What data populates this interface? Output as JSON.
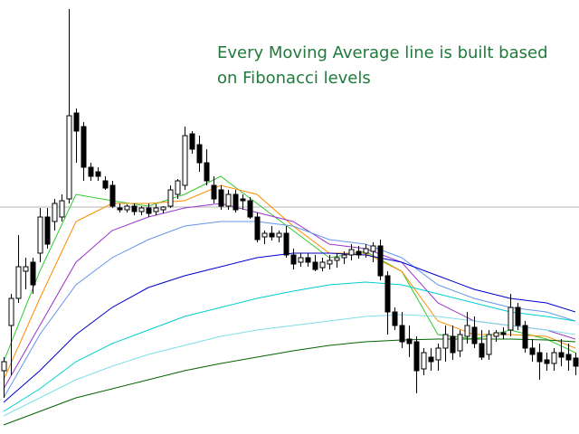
{
  "chart_data": {
    "type": "candlestick",
    "annotation": [
      "Every Moving Average line is built based",
      "on Fibonacci levels"
    ],
    "xlim": [
      0,
      79
    ],
    "ylim": [
      0,
      480
    ],
    "price_line": 251,
    "candles": {
      "open": [
        70,
        120,
        150,
        180,
        190,
        200,
        240,
        235,
        240,
        260,
        355,
        340,
        295,
        290,
        280,
        275,
        250,
        248,
        252,
        246,
        250,
        246,
        248,
        252,
        265,
        275,
        332,
        320,
        300,
        275,
        270,
        252,
        265,
        260,
        258,
        240,
        218,
        222,
        218,
        222,
        198,
        190,
        195,
        190,
        184,
        188,
        192,
        195,
        198,
        202,
        200,
        202,
        208,
        175,
        135,
        120,
        105,
        102,
        72,
        85,
        82,
        95,
        108,
        92,
        108,
        118,
        100,
        88,
        108,
        112,
        115,
        140,
        120,
        95,
        90,
        82,
        78,
        90,
        88,
        84
      ],
      "high": [
        85,
        155,
        220,
        195,
        195,
        250,
        250,
        260,
        265,
        470,
        360,
        345,
        300,
        295,
        285,
        280,
        255,
        254,
        255,
        252,
        255,
        254,
        252,
        275,
        282,
        340,
        335,
        330,
        315,
        285,
        275,
        270,
        270,
        265,
        262,
        245,
        225,
        230,
        225,
        230,
        205,
        200,
        200,
        198,
        195,
        198,
        200,
        202,
        210,
        208,
        210,
        212,
        215,
        180,
        140,
        135,
        120,
        108,
        95,
        95,
        100,
        120,
        120,
        115,
        135,
        130,
        115,
        115,
        115,
        118,
        155,
        145,
        125,
        105,
        100,
        90,
        95,
        105,
        100,
        90
      ],
      "low": [
        40,
        65,
        145,
        160,
        155,
        190,
        205,
        225,
        235,
        255,
        300,
        280,
        280,
        280,
        270,
        250,
        245,
        245,
        242,
        242,
        240,
        242,
        244,
        250,
        260,
        270,
        310,
        290,
        275,
        255,
        248,
        248,
        245,
        248,
        238,
        212,
        210,
        214,
        212,
        195,
        182,
        185,
        185,
        180,
        180,
        182,
        184,
        188,
        192,
        194,
        195,
        190,
        170,
        110,
        115,
        95,
        85,
        45,
        65,
        70,
        70,
        80,
        82,
        85,
        100,
        95,
        82,
        82,
        102,
        105,
        108,
        115,
        90,
        80,
        60,
        70,
        70,
        75,
        70,
        65
      ],
      "close": [
        80,
        150,
        185,
        185,
        165,
        240,
        210,
        255,
        258,
        352,
        335,
        295,
        285,
        285,
        272,
        252,
        248,
        252,
        246,
        250,
        244,
        250,
        251,
        270,
        280,
        330,
        315,
        300,
        280,
        260,
        252,
        265,
        248,
        258,
        240,
        215,
        222,
        218,
        222,
        198,
        188,
        195,
        190,
        182,
        190,
        192,
        195,
        198,
        204,
        198,
        205,
        208,
        175,
        135,
        120,
        102,
        100,
        70,
        90,
        80,
        95,
        110,
        90,
        110,
        120,
        100,
        85,
        110,
        112,
        110,
        140,
        120,
        95,
        88,
        80,
        78,
        90,
        85,
        82,
        75
      ]
    },
    "lines": {
      "x": [
        0,
        5,
        10,
        15,
        20,
        25,
        30,
        35,
        40,
        45,
        50,
        55,
        60,
        65,
        70,
        75,
        79
      ],
      "series": [
        {
          "color": "#2ecc2e",
          "values": [
            80,
            180,
            265,
            258,
            252,
            265,
            285,
            255,
            225,
            195,
            202,
            180,
            110,
            105,
            115,
            105,
            90
          ]
        },
        {
          "color": "#ff8c00",
          "values": [
            60,
            150,
            235,
            255,
            255,
            258,
            275,
            265,
            230,
            200,
            200,
            180,
            125,
            110,
            110,
            108,
            95
          ]
        },
        {
          "color": "#9932cc",
          "values": [
            50,
            120,
            190,
            225,
            240,
            250,
            255,
            245,
            235,
            210,
            205,
            190,
            145,
            125,
            120,
            115,
            105
          ]
        },
        {
          "color": "#6495ed",
          "values": [
            40,
            110,
            165,
            195,
            215,
            230,
            235,
            235,
            230,
            215,
            210,
            195,
            165,
            150,
            140,
            135,
            125
          ]
        },
        {
          "color": "#0000cd",
          "values": [
            35,
            70,
            110,
            140,
            162,
            175,
            185,
            195,
            200,
            200,
            198,
            190,
            175,
            160,
            150,
            145,
            135
          ]
        },
        {
          "color": "#00ced1",
          "values": [
            25,
            50,
            80,
            100,
            115,
            130,
            140,
            150,
            158,
            165,
            168,
            165,
            155,
            145,
            135,
            130,
            125
          ]
        },
        {
          "color": "#7fdfe6",
          "values": [
            20,
            40,
            60,
            75,
            88,
            98,
            108,
            115,
            120,
            125,
            130,
            132,
            130,
            125,
            120,
            115,
            110
          ]
        },
        {
          "color": "#006400",
          "values": [
            10,
            25,
            40,
            50,
            60,
            70,
            78,
            85,
            92,
            98,
            102,
            104,
            105,
            105,
            105,
            104,
            102
          ]
        }
      ]
    }
  }
}
